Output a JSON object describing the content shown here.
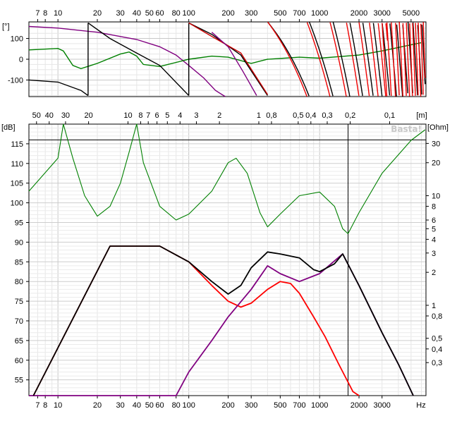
{
  "chart_data": [
    {
      "type": "line",
      "name": "phase",
      "ylabel": "[°]",
      "ylim": [
        -180,
        180
      ],
      "yticks": [
        "100",
        "0",
        "-100"
      ],
      "ytick_values": [
        100,
        0,
        -100
      ],
      "xlim_hz": [
        6,
        6500
      ],
      "xticks": [
        {
          "label": "7",
          "hz": 7
        },
        {
          "label": "8",
          "hz": 8
        },
        {
          "label": "10",
          "hz": 10
        },
        {
          "label": "20",
          "hz": 20
        },
        {
          "label": "30",
          "hz": 30
        },
        {
          "label": "40",
          "hz": 40
        },
        {
          "label": "50",
          "hz": 50
        },
        {
          "label": "60",
          "hz": 60
        },
        {
          "label": "80",
          "hz": 80
        },
        {
          "label": "100",
          "hz": 100
        },
        {
          "label": "200",
          "hz": 200
        },
        {
          "label": "300",
          "hz": 300
        },
        {
          "label": "500",
          "hz": 500
        },
        {
          "label": "700",
          "hz": 700
        },
        {
          "label": "1000",
          "hz": 1000
        },
        {
          "label": "2000",
          "hz": 2000
        },
        {
          "label": "3000",
          "hz": 3000
        },
        {
          "label": "5000",
          "hz": 5000
        }
      ],
      "series": [
        {
          "name": "purple",
          "color": "#800080",
          "points": [
            [
              6,
              158
            ],
            [
              10,
              150
            ],
            [
              20,
              130
            ],
            [
              40,
              95
            ],
            [
              60,
              60
            ],
            [
              80,
              20
            ],
            [
              100,
              -30
            ],
            [
              130,
              -90
            ],
            [
              160,
              -150
            ],
            [
              190,
              -180
            ]
          ]
        },
        {
          "name": "green",
          "color": "#008000",
          "points": [
            [
              6,
              45
            ],
            [
              10,
              52
            ],
            [
              11,
              40
            ],
            [
              13,
              -30
            ],
            [
              15,
              -45
            ],
            [
              20,
              -20
            ],
            [
              30,
              25
            ],
            [
              35,
              35
            ],
            [
              40,
              15
            ],
            [
              45,
              -25
            ],
            [
              60,
              -35
            ],
            [
              100,
              0
            ],
            [
              150,
              15
            ],
            [
              200,
              10
            ],
            [
              300,
              -20
            ],
            [
              400,
              0
            ],
            [
              700,
              10
            ],
            [
              1000,
              5
            ],
            [
              2000,
              20
            ],
            [
              3000,
              40
            ],
            [
              6000,
              80
            ]
          ]
        }
      ]
    },
    {
      "type": "line",
      "name": "spl_impedance",
      "ylabel": "[dB]",
      "y2label": "[Ohm]",
      "xlabel": "Hz",
      "ylim": [
        51,
        120
      ],
      "yticks": [
        "115",
        "110",
        "105",
        "100",
        "95",
        "90",
        "85",
        "80",
        "75",
        "70",
        "65",
        "60",
        "55"
      ],
      "ytick_values": [
        115,
        110,
        105,
        100,
        95,
        90,
        85,
        80,
        75,
        70,
        65,
        60,
        55
      ],
      "y2ticks": [
        "30",
        "20",
        "10",
        "8",
        "6",
        "5",
        "4",
        "3",
        "2",
        "1",
        "0,8",
        "0,5",
        "0,4",
        "0,3"
      ],
      "y2tick_values": [
        30,
        20,
        10,
        8,
        6,
        5,
        4,
        3,
        2,
        1,
        0.8,
        0.5,
        0.4,
        0.3
      ],
      "y2lim_ohm": [
        0.15,
        45
      ],
      "xticks": [
        {
          "label": "7",
          "hz": 7
        },
        {
          "label": "8",
          "hz": 8
        },
        {
          "label": "10",
          "hz": 10
        },
        {
          "label": "20",
          "hz": 20
        },
        {
          "label": "30",
          "hz": 30
        },
        {
          "label": "40",
          "hz": 40
        },
        {
          "label": "50",
          "hz": 50
        },
        {
          "label": "60",
          "hz": 60
        },
        {
          "label": "80",
          "hz": 80
        },
        {
          "label": "100",
          "hz": 100
        },
        {
          "label": "200",
          "hz": 200
        },
        {
          "label": "300",
          "hz": 300
        },
        {
          "label": "500",
          "hz": 500
        },
        {
          "label": "700",
          "hz": 700
        },
        {
          "label": "1000",
          "hz": 1000
        },
        {
          "label": "2000",
          "hz": 2000
        },
        {
          "label": "3000",
          "hz": 3000
        }
      ],
      "wavelength_label": "[m]",
      "wavelength_ticks": [
        "50",
        "40",
        "30",
        "20",
        "10",
        "8",
        "7",
        "6",
        "5",
        "4",
        "3",
        "2",
        "1",
        "0,8",
        "0,5",
        "0,4",
        "0,3",
        "0,2",
        "0,1"
      ],
      "wavelength_values": [
        50,
        40,
        30,
        20,
        10,
        8,
        7,
        6,
        5,
        4,
        3,
        2,
        1,
        0.8,
        0.5,
        0.4,
        0.3,
        0.2,
        0.1
      ],
      "marker_hz": 1650,
      "marker_db": 116,
      "watermark": "Basta!",
      "series": [
        {
          "name": "red",
          "color": "#ff0000",
          "axis": "db",
          "points": [
            [
              6.5,
              51
            ],
            [
              25,
              89
            ],
            [
              60,
              89
            ],
            [
              100,
              85
            ],
            [
              150,
              79
            ],
            [
              200,
              75
            ],
            [
              250,
              73.5
            ],
            [
              300,
              74.5
            ],
            [
              400,
              78
            ],
            [
              500,
              80
            ],
            [
              600,
              79.5
            ],
            [
              700,
              77
            ],
            [
              900,
              71
            ],
            [
              1100,
              66
            ],
            [
              1400,
              59
            ],
            [
              1800,
              52
            ],
            [
              2000,
              51
            ]
          ]
        },
        {
          "name": "purple",
          "color": "#800080",
          "axis": "db",
          "points": [
            [
              6,
              51
            ],
            [
              80,
              51
            ],
            [
              100,
              57
            ],
            [
              150,
              65
            ],
            [
              200,
              71
            ],
            [
              300,
              78
            ],
            [
              400,
              84
            ],
            [
              500,
              82
            ],
            [
              700,
              80
            ],
            [
              1000,
              82
            ],
            [
              1500,
              87
            ],
            [
              2000,
              79
            ],
            [
              3000,
              67
            ],
            [
              4000,
              59
            ],
            [
              5200,
              51
            ]
          ]
        },
        {
          "name": "black",
          "color": "#000000",
          "axis": "db",
          "points": [
            [
              6.5,
              51
            ],
            [
              25,
              89
            ],
            [
              60,
              89
            ],
            [
              100,
              85
            ],
            [
              150,
              80
            ],
            [
              200,
              76.8
            ],
            [
              250,
              79
            ],
            [
              300,
              83.5
            ],
            [
              400,
              87.5
            ],
            [
              500,
              87
            ],
            [
              700,
              86
            ],
            [
              900,
              83
            ],
            [
              1000,
              82.5
            ],
            [
              1300,
              84.5
            ],
            [
              1500,
              87
            ],
            [
              2000,
              79
            ],
            [
              3000,
              67
            ],
            [
              4000,
              59
            ],
            [
              5200,
              51
            ]
          ]
        },
        {
          "name": "green",
          "color": "#008000",
          "axis": "ohm",
          "points": [
            [
              6,
              11
            ],
            [
              10,
              22
            ],
            [
              11,
              45
            ],
            [
              13,
              22
            ],
            [
              16,
              10
            ],
            [
              20,
              6.5
            ],
            [
              25,
              8
            ],
            [
              30,
              13
            ],
            [
              35,
              25
            ],
            [
              40,
              45
            ],
            [
              45,
              20
            ],
            [
              60,
              8
            ],
            [
              80,
              6
            ],
            [
              100,
              6.8
            ],
            [
              150,
              11
            ],
            [
              200,
              20
            ],
            [
              230,
              22
            ],
            [
              280,
              16
            ],
            [
              350,
              7
            ],
            [
              400,
              5.2
            ],
            [
              500,
              6.8
            ],
            [
              700,
              10
            ],
            [
              1000,
              10.8
            ],
            [
              1300,
              8
            ],
            [
              1500,
              5
            ],
            [
              1650,
              4.5
            ],
            [
              2000,
              7
            ],
            [
              3000,
              16
            ],
            [
              5000,
              32
            ],
            [
              6400,
              40
            ]
          ]
        }
      ]
    }
  ]
}
